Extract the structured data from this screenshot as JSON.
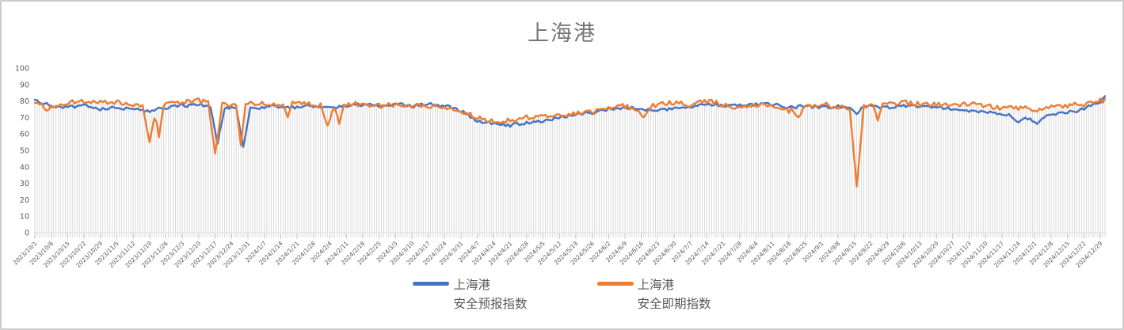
{
  "chart_data": {
    "type": "line",
    "title": "上海港",
    "xlabel": "",
    "ylabel": "",
    "ylim": [
      0,
      100
    ],
    "ytick_step": 10,
    "grid": false,
    "drop_lines": true,
    "legend_position": "bottom-center",
    "x_sampling": "daily data points; axis tick labels are weekly",
    "categories": [
      "2023/10/1",
      "2023/10/8",
      "2023/10/15",
      "2023/10/22",
      "2023/10/29",
      "2023/11/5",
      "2023/11/12",
      "2023/11/19",
      "2023/11/26",
      "2023/12/3",
      "2023/12/10",
      "2023/12/17",
      "2023/12/24",
      "2023/12/31",
      "2024/1/7",
      "2024/1/14",
      "2024/1/21",
      "2024/1/28",
      "2024/2/4",
      "2024/2/11",
      "2024/2/18",
      "2024/2/25",
      "2024/3/3",
      "2024/3/10",
      "2024/3/17",
      "2024/3/24",
      "2024/3/31",
      "2024/4/7",
      "2024/4/14",
      "2024/4/21",
      "2024/4/28",
      "2024/5/5",
      "2024/5/12",
      "2024/5/19",
      "2024/5/26",
      "2024/6/2",
      "2024/6/9",
      "2024/6/16",
      "2024/6/23",
      "2024/6/30",
      "2024/7/7",
      "2024/7/14",
      "2024/7/21",
      "2024/7/28",
      "2024/8/4",
      "2024/8/11",
      "2024/8/18",
      "2024/8/25",
      "2024/9/1",
      "2024/9/8",
      "2024/9/15",
      "2024/9/22",
      "2024/9/29",
      "2024/10/6",
      "2024/10/13",
      "2024/10/20",
      "2024/10/27",
      "2024/11/3",
      "2024/11/10",
      "2024/11/17",
      "2024/11/24",
      "2024/12/1",
      "2024/12/8",
      "2024/12/15",
      "2024/12/22",
      "2024/12/29"
    ],
    "series": [
      {
        "id": "forecast",
        "name": [
          "上海港",
          "安全预报指数"
        ],
        "color": "#4472C4",
        "weekly_values": [
          80,
          77,
          76,
          77,
          75,
          76,
          75,
          74,
          76,
          77,
          78,
          76,
          76,
          75,
          76,
          77,
          76,
          77,
          76,
          77,
          78,
          77,
          78,
          77,
          78,
          77,
          74,
          68,
          66,
          65,
          67,
          68,
          70,
          72,
          73,
          75,
          76,
          75,
          74,
          76,
          77,
          78,
          77,
          77,
          78,
          78,
          76,
          77,
          76,
          77,
          75,
          77,
          76,
          77,
          77,
          76,
          75,
          74,
          73,
          72,
          70,
          69,
          72,
          73,
          75,
          80
        ]
      },
      {
        "id": "spot",
        "name": [
          "上海港",
          "安全即期指数"
        ],
        "color": "#ED7D31",
        "weekly_values": [
          80,
          76,
          79,
          80,
          79,
          79,
          78,
          77,
          78,
          79,
          80,
          78,
          77,
          78,
          78,
          78,
          79,
          78,
          77,
          78,
          78,
          77,
          78,
          77,
          77,
          76,
          73,
          70,
          68,
          68,
          70,
          70,
          71,
          72,
          74,
          76,
          77,
          74,
          78,
          79,
          78,
          80,
          78,
          76,
          78,
          77,
          74,
          77,
          78,
          76,
          76,
          77,
          79,
          79,
          78,
          78,
          78,
          78,
          77,
          76,
          76,
          75,
          76,
          77,
          78,
          80
        ]
      }
    ],
    "anomalies": [
      {
        "series": 1,
        "date": "2023/10/6",
        "day": 5,
        "value": 74,
        "width": 2
      },
      {
        "series": 1,
        "date": "2023/11/19",
        "day": 49,
        "value": 55,
        "width": 3
      },
      {
        "series": 1,
        "date": "2023/11/23",
        "day": 53,
        "value": 58,
        "width": 2
      },
      {
        "series": 1,
        "date": "2023/12/17",
        "day": 77,
        "value": 48,
        "width": 3
      },
      {
        "series": 0,
        "date": "2023/12/18",
        "day": 78,
        "value": 54,
        "width": 3
      },
      {
        "series": 1,
        "date": "2023/12/28",
        "day": 88,
        "value": 53,
        "width": 2
      },
      {
        "series": 0,
        "date": "2023/12/29",
        "day": 89,
        "value": 52,
        "width": 3
      },
      {
        "series": 1,
        "date": "2024/1/17",
        "day": 108,
        "value": 70,
        "width": 2
      },
      {
        "series": 1,
        "date": "2024/2/3",
        "day": 125,
        "value": 65,
        "width": 3
      },
      {
        "series": 1,
        "date": "2024/2/8",
        "day": 130,
        "value": 66,
        "width": 2
      },
      {
        "series": 1,
        "date": "2024/6/17",
        "day": 260,
        "value": 70,
        "width": 3
      },
      {
        "series": 1,
        "date": "2024/8/22",
        "day": 326,
        "value": 70,
        "width": 3
      },
      {
        "series": 0,
        "date": "2024/9/16",
        "day": 351,
        "value": 72,
        "width": 2
      },
      {
        "series": 1,
        "date": "2024/9/16",
        "day": 351,
        "value": 28,
        "width": 3
      },
      {
        "series": 1,
        "date": "2024/9/25",
        "day": 360,
        "value": 68,
        "width": 2
      },
      {
        "series": 0,
        "date": "2024/11/23",
        "day": 420,
        "value": 67,
        "width": 3
      },
      {
        "series": 0,
        "date": "2024/12/1",
        "day": 428,
        "value": 66,
        "width": 3
      },
      {
        "series": 0,
        "date": "2024/12/31",
        "day": 457,
        "value": 83,
        "width": 2
      }
    ],
    "colors": {
      "title_text": "#767676",
      "axis_text": "#595959",
      "drop_line": "#d9d9d9",
      "axis_line": "#d9d9d9",
      "tick_major": "#bfbfbf",
      "chart_border": "#cbcbcb",
      "background": "#ffffff"
    },
    "render": {
      "days": 458,
      "seed": 11,
      "noise_amp": [
        1.0,
        1.6
      ]
    }
  }
}
